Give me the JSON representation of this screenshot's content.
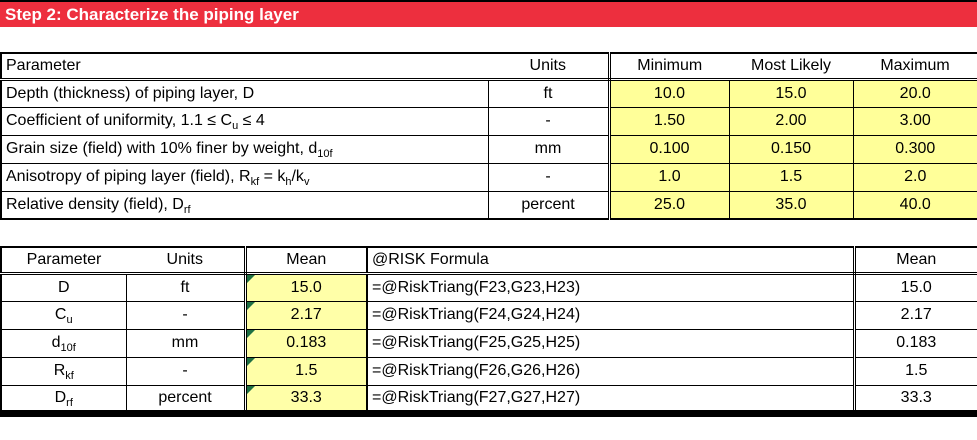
{
  "banner": {
    "title": "Step 2: Characterize the piping layer"
  },
  "colors": {
    "banner_red": "#ED2F3E",
    "input_yellow": "#FFFF99",
    "mean_yellow": "#FFFFA8",
    "marker_green": "#1F7044"
  },
  "table1": {
    "headers": {
      "parameter": "Parameter",
      "units": "Units",
      "minimum": "Minimum",
      "most_likely": "Most Likely",
      "maximum": "Maximum"
    },
    "rows": [
      {
        "label": [
          {
            "t": "Depth (thickness) of piping layer, D"
          }
        ],
        "units": "ft",
        "minimum": "10.0",
        "most_likely": "15.0",
        "maximum": "20.0"
      },
      {
        "label": [
          {
            "t": "Coefficient of uniformity, 1.1 ≤ C"
          },
          {
            "t": "u",
            "s": true
          },
          {
            "t": " ≤ 4"
          }
        ],
        "units": "-",
        "minimum": "1.50",
        "most_likely": "2.00",
        "maximum": "3.00"
      },
      {
        "label": [
          {
            "t": "Grain size (field) with 10% finer by weight, d"
          },
          {
            "t": "10f",
            "s": true
          }
        ],
        "units": "mm",
        "minimum": "0.100",
        "most_likely": "0.150",
        "maximum": "0.300"
      },
      {
        "label": [
          {
            "t": "Anisotropy of piping layer (field), R"
          },
          {
            "t": "kf",
            "s": true
          },
          {
            "t": " = k"
          },
          {
            "t": "h",
            "s": true
          },
          {
            "t": "/k"
          },
          {
            "t": "v",
            "s": true
          }
        ],
        "units": "-",
        "minimum": "1.0",
        "most_likely": "1.5",
        "maximum": "2.0"
      },
      {
        "label": [
          {
            "t": "Relative density (field), D"
          },
          {
            "t": "rf",
            "s": true
          }
        ],
        "units": "percent",
        "minimum": "25.0",
        "most_likely": "35.0",
        "maximum": "40.0"
      }
    ]
  },
  "table2": {
    "headers": {
      "parameter": "Parameter",
      "units": "Units",
      "mean": "Mean",
      "formula": "@RISK Formula",
      "mean_right": "Mean"
    },
    "rows": [
      {
        "param": [
          {
            "t": "D"
          }
        ],
        "units": "ft",
        "mean": "15.0",
        "formula": "=@RiskTriang(F23,G23,H23)",
        "mean_right": "15.0"
      },
      {
        "param": [
          {
            "t": "C"
          },
          {
            "t": "u",
            "s": true
          }
        ],
        "units": "-",
        "mean": "2.17",
        "formula": "=@RiskTriang(F24,G24,H24)",
        "mean_right": "2.17"
      },
      {
        "param": [
          {
            "t": "d"
          },
          {
            "t": "10f",
            "s": true
          }
        ],
        "units": "mm",
        "mean": "0.183",
        "formula": "=@RiskTriang(F25,G25,H25)",
        "mean_right": "0.183"
      },
      {
        "param": [
          {
            "t": "R"
          },
          {
            "t": "kf",
            "s": true
          }
        ],
        "units": "-",
        "mean": "1.5",
        "formula": "=@RiskTriang(F26,G26,H26)",
        "mean_right": "1.5"
      },
      {
        "param": [
          {
            "t": "D"
          },
          {
            "t": "rf",
            "s": true
          }
        ],
        "units": "percent",
        "mean": "33.3",
        "formula": "=@RiskTriang(F27,G27,H27)",
        "mean_right": "33.3"
      }
    ]
  }
}
